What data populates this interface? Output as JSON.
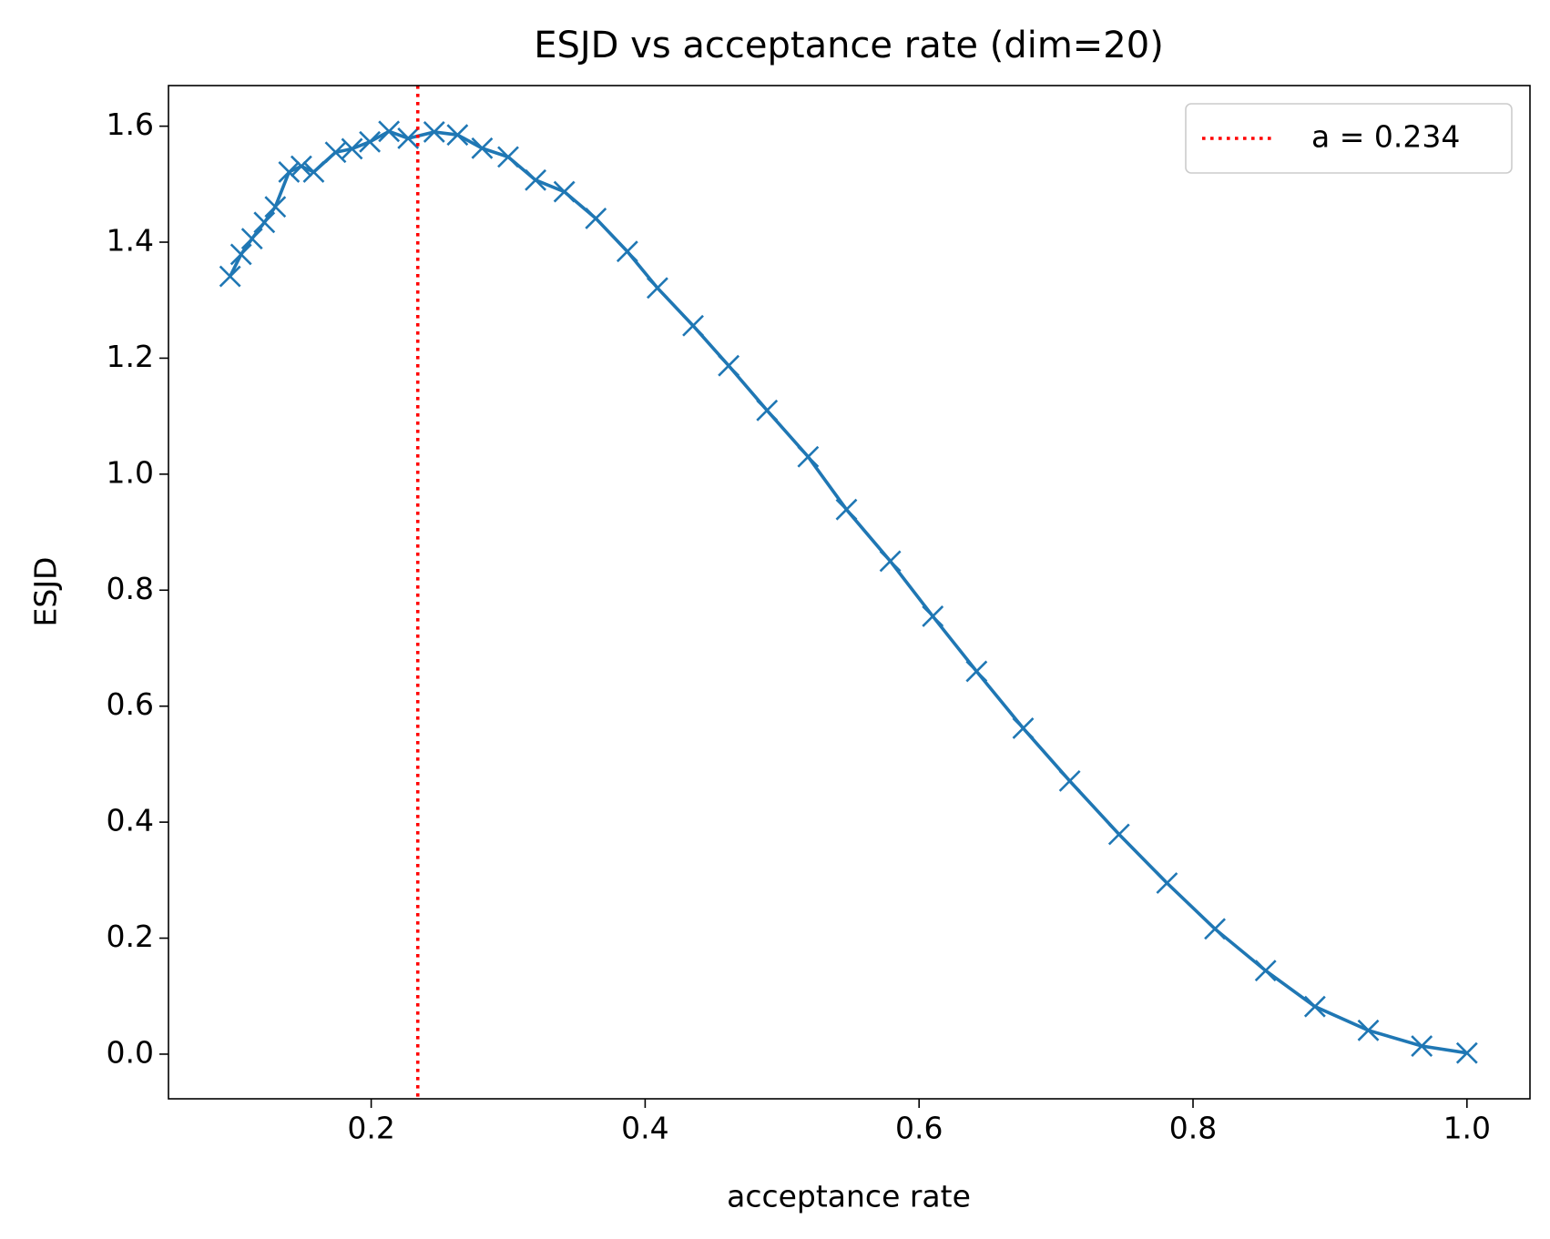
{
  "chart_data": {
    "type": "line",
    "title": "ESJD vs acceptance rate (dim=20)",
    "x_label": "acceptance rate",
    "y_label": "ESJD",
    "x": [
      0.097,
      0.105,
      0.113,
      0.122,
      0.13,
      0.14,
      0.149,
      0.158,
      0.174,
      0.186,
      0.199,
      0.213,
      0.227,
      0.246,
      0.263,
      0.281,
      0.3,
      0.32,
      0.341,
      0.364,
      0.387,
      0.409,
      0.435,
      0.461,
      0.489,
      0.519,
      0.547,
      0.579,
      0.61,
      0.642,
      0.676,
      0.71,
      0.746,
      0.781,
      0.816,
      0.853,
      0.889,
      0.928,
      0.967,
      1.0
    ],
    "series": [
      {
        "name": null,
        "color": "#1f77b4",
        "marker": "x",
        "values": [
          1.341,
          1.379,
          1.406,
          1.434,
          1.461,
          1.521,
          1.531,
          1.521,
          1.555,
          1.561,
          1.573,
          1.591,
          1.579,
          1.59,
          1.585,
          1.562,
          1.547,
          1.507,
          1.487,
          1.441,
          1.384,
          1.321,
          1.256,
          1.187,
          1.11,
          1.03,
          0.939,
          0.85,
          0.755,
          0.66,
          0.562,
          0.471,
          0.379,
          0.295,
          0.216,
          0.144,
          0.082,
          0.041,
          0.014,
          0.002
        ]
      }
    ],
    "vline": {
      "name": "a = 0.234",
      "value": 0.234,
      "color": "#ff0000",
      "style": "dotted"
    },
    "xlim": [
      0.052,
      1.046
    ],
    "ylim": [
      -0.077,
      1.67
    ],
    "xticks": [
      {
        "value": 0.2,
        "label": "0.2"
      },
      {
        "value": 0.4,
        "label": "0.4"
      },
      {
        "value": 0.6,
        "label": "0.6"
      },
      {
        "value": 0.8,
        "label": "0.8"
      },
      {
        "value": 1.0,
        "label": "1.0"
      }
    ],
    "yticks": [
      {
        "value": 0.0,
        "label": "0.0"
      },
      {
        "value": 0.2,
        "label": "0.2"
      },
      {
        "value": 0.4,
        "label": "0.4"
      },
      {
        "value": 0.6,
        "label": "0.6"
      },
      {
        "value": 0.8,
        "label": "0.8"
      },
      {
        "value": 1.0,
        "label": "1.0"
      },
      {
        "value": 1.2,
        "label": "1.2"
      },
      {
        "value": 1.4,
        "label": "1.4"
      },
      {
        "value": 1.6,
        "label": "1.6"
      }
    ],
    "grid": false,
    "legend": "upper right"
  }
}
